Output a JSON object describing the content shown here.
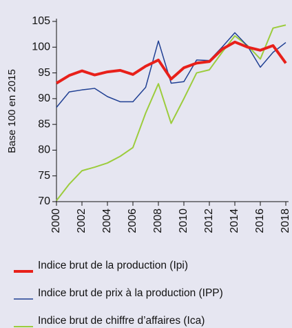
{
  "chart_data": {
    "type": "line",
    "ylabel": "Base 100 en 2015",
    "x": [
      2000,
      2001,
      2002,
      2003,
      2004,
      2005,
      2006,
      2007,
      2008,
      2009,
      2010,
      2011,
      2012,
      2013,
      2014,
      2015,
      2016,
      2017,
      2018
    ],
    "xlim": [
      2000,
      2018
    ],
    "xticks": [
      2000,
      2002,
      2004,
      2006,
      2008,
      2010,
      2012,
      2014,
      2016,
      2018
    ],
    "ylim": [
      70,
      105
    ],
    "yticks": [
      70,
      75,
      80,
      85,
      90,
      95,
      100,
      105
    ],
    "series": [
      {
        "name": "Indice brut de la production (Ipi)",
        "color": "#e8201a",
        "width": 4,
        "values": [
          93,
          94.5,
          95.4,
          94.6,
          95.2,
          95.5,
          94.7,
          96.3,
          97.5,
          93.8,
          96,
          96.9,
          97.2,
          99.6,
          101,
          100,
          99.4,
          100.3,
          96.9
        ]
      },
      {
        "name": "Indice brut de prix à la production (IPP)",
        "color": "#1f3f93",
        "width": 1.5,
        "values": [
          88.3,
          91.3,
          91.7,
          92,
          90.4,
          89.4,
          89.4,
          92.2,
          101.2,
          93,
          93.3,
          97.5,
          97.4,
          100,
          102.8,
          100.2,
          96.1,
          99,
          100.9
        ]
      },
      {
        "name": "Indice brut de chiffre d’affaires (Ica)",
        "color": "#9ccc3c",
        "width": 2,
        "values": [
          70.2,
          73.4,
          76,
          76.7,
          77.5,
          78.8,
          80.5,
          87.2,
          92.9,
          85.2,
          90,
          95,
          95.6,
          99,
          102.2,
          100.3,
          97.7,
          103.7,
          104.3
        ]
      }
    ]
  }
}
